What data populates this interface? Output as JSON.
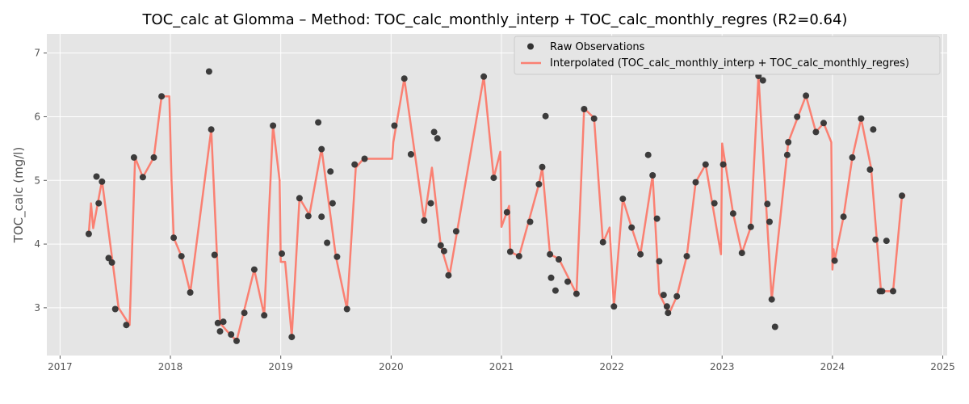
{
  "chart_data": {
    "type": "line",
    "title": "TOC_calc at Glomma – Method: TOC_calc_monthly_interp + TOC_calc_monthly_regres (R2=0.64)",
    "xlabel": "",
    "ylabel": "TOC_calc (mg/l)",
    "x_ticks": [
      "2017",
      "2018",
      "2019",
      "2020",
      "2021",
      "2022",
      "2023",
      "2024",
      "2025"
    ],
    "y_ticks": [
      "3",
      "4",
      "5",
      "6",
      "7"
    ],
    "xlim": [
      2016.88,
      2025.04
    ],
    "ylim": [
      2.25,
      7.3
    ],
    "grid": true,
    "legend_position": "top-right",
    "colors": {
      "plot_background": "#e5e5e5",
      "grid": "#ffffff",
      "raw_points": "#333333",
      "interp_line": "#fa8072"
    },
    "series": [
      {
        "name": "Raw Observations",
        "kind": "scatter",
        "points": [
          [
            2017.26,
            4.16
          ],
          [
            2017.33,
            5.06
          ],
          [
            2017.35,
            4.64
          ],
          [
            2017.38,
            4.98
          ],
          [
            2017.44,
            3.78
          ],
          [
            2017.47,
            3.71
          ],
          [
            2017.5,
            2.98
          ],
          [
            2017.6,
            2.73
          ],
          [
            2017.67,
            5.36
          ],
          [
            2017.75,
            5.05
          ],
          [
            2017.85,
            5.36
          ],
          [
            2017.92,
            6.32
          ],
          [
            2018.03,
            4.1
          ],
          [
            2018.1,
            3.81
          ],
          [
            2018.18,
            3.24
          ],
          [
            2018.35,
            6.71
          ],
          [
            2018.37,
            5.8
          ],
          [
            2018.4,
            3.83
          ],
          [
            2018.43,
            2.76
          ],
          [
            2018.45,
            2.63
          ],
          [
            2018.48,
            2.78
          ],
          [
            2018.55,
            2.58
          ],
          [
            2018.6,
            2.48
          ],
          [
            2018.67,
            2.92
          ],
          [
            2018.76,
            3.6
          ],
          [
            2018.85,
            2.88
          ],
          [
            2018.93,
            5.86
          ],
          [
            2019.01,
            3.85
          ],
          [
            2019.1,
            2.54
          ],
          [
            2019.17,
            4.72
          ],
          [
            2019.25,
            4.44
          ],
          [
            2019.34,
            5.91
          ],
          [
            2019.37,
            4.43
          ],
          [
            2019.37,
            5.49
          ],
          [
            2019.42,
            4.02
          ],
          [
            2019.45,
            5.14
          ],
          [
            2019.47,
            4.64
          ],
          [
            2019.51,
            3.8
          ],
          [
            2019.6,
            2.98
          ],
          [
            2019.67,
            5.25
          ],
          [
            2019.76,
            5.34
          ],
          [
            2020.03,
            5.86
          ],
          [
            2020.12,
            6.6
          ],
          [
            2020.18,
            5.41
          ],
          [
            2020.3,
            4.37
          ],
          [
            2020.36,
            4.64
          ],
          [
            2020.39,
            5.76
          ],
          [
            2020.42,
            5.66
          ],
          [
            2020.45,
            3.98
          ],
          [
            2020.48,
            3.89
          ],
          [
            2020.52,
            3.51
          ],
          [
            2020.59,
            4.2
          ],
          [
            2020.84,
            6.63
          ],
          [
            2020.93,
            5.04
          ],
          [
            2021.05,
            4.5
          ],
          [
            2021.08,
            3.88
          ],
          [
            2021.16,
            3.81
          ],
          [
            2021.26,
            4.35
          ],
          [
            2021.34,
            4.94
          ],
          [
            2021.37,
            5.21
          ],
          [
            2021.4,
            6.01
          ],
          [
            2021.44,
            3.84
          ],
          [
            2021.45,
            3.47
          ],
          [
            2021.49,
            3.27
          ],
          [
            2021.52,
            3.76
          ],
          [
            2021.6,
            3.41
          ],
          [
            2021.68,
            3.22
          ],
          [
            2021.75,
            6.12
          ],
          [
            2021.84,
            5.97
          ],
          [
            2021.92,
            4.03
          ],
          [
            2022.02,
            3.02
          ],
          [
            2022.1,
            4.71
          ],
          [
            2022.18,
            4.26
          ],
          [
            2022.26,
            3.84
          ],
          [
            2022.33,
            5.4
          ],
          [
            2022.37,
            5.08
          ],
          [
            2022.41,
            4.4
          ],
          [
            2022.43,
            3.73
          ],
          [
            2022.47,
            3.2
          ],
          [
            2022.5,
            3.02
          ],
          [
            2022.51,
            2.92
          ],
          [
            2022.59,
            3.18
          ],
          [
            2022.68,
            3.81
          ],
          [
            2022.76,
            4.97
          ],
          [
            2022.85,
            5.25
          ],
          [
            2022.93,
            4.64
          ],
          [
            2023.01,
            5.25
          ],
          [
            2023.1,
            4.48
          ],
          [
            2023.18,
            3.86
          ],
          [
            2023.26,
            4.27
          ],
          [
            2023.33,
            6.64
          ],
          [
            2023.37,
            6.57
          ],
          [
            2023.41,
            4.63
          ],
          [
            2023.43,
            4.35
          ],
          [
            2023.45,
            3.13
          ],
          [
            2023.48,
            2.7
          ],
          [
            2023.59,
            5.4
          ],
          [
            2023.6,
            5.6
          ],
          [
            2023.65,
            7.02
          ],
          [
            2023.68,
            6.0
          ],
          [
            2023.76,
            6.33
          ],
          [
            2023.85,
            5.76
          ],
          [
            2023.92,
            5.9
          ],
          [
            2024.02,
            3.74
          ],
          [
            2024.1,
            4.43
          ],
          [
            2024.18,
            5.36
          ],
          [
            2024.26,
            5.97
          ],
          [
            2024.34,
            5.17
          ],
          [
            2024.37,
            5.8
          ],
          [
            2024.39,
            4.07
          ],
          [
            2024.43,
            3.26
          ],
          [
            2024.45,
            3.26
          ],
          [
            2024.49,
            4.05
          ],
          [
            2024.55,
            3.26
          ],
          [
            2024.63,
            4.76
          ]
        ]
      },
      {
        "name": "Interpolated (TOC_calc_monthly_interp + TOC_calc_monthly_regres)",
        "kind": "line",
        "points": [
          [
            2017.26,
            4.16
          ],
          [
            2017.28,
            4.64
          ],
          [
            2017.3,
            4.25
          ],
          [
            2017.38,
            5.0
          ],
          [
            2017.47,
            3.8
          ],
          [
            2017.53,
            3.0
          ],
          [
            2017.63,
            2.73
          ],
          [
            2017.68,
            5.36
          ],
          [
            2017.75,
            5.05
          ],
          [
            2017.85,
            5.36
          ],
          [
            2017.92,
            6.32
          ],
          [
            2017.99,
            6.32
          ],
          [
            2018.01,
            5.0
          ],
          [
            2018.03,
            4.1
          ],
          [
            2018.1,
            3.81
          ],
          [
            2018.18,
            3.24
          ],
          [
            2018.37,
            5.8
          ],
          [
            2018.45,
            2.76
          ],
          [
            2018.52,
            2.62
          ],
          [
            2018.6,
            2.48
          ],
          [
            2018.76,
            3.6
          ],
          [
            2018.85,
            2.88
          ],
          [
            2018.93,
            5.86
          ],
          [
            2018.99,
            5.0
          ],
          [
            2019.0,
            3.72
          ],
          [
            2019.04,
            3.72
          ],
          [
            2019.1,
            2.55
          ],
          [
            2019.17,
            4.72
          ],
          [
            2019.26,
            4.46
          ],
          [
            2019.37,
            5.5
          ],
          [
            2019.5,
            3.8
          ],
          [
            2019.6,
            2.98
          ],
          [
            2019.68,
            5.2
          ],
          [
            2019.75,
            5.34
          ],
          [
            2020.01,
            5.34
          ],
          [
            2020.02,
            5.6
          ],
          [
            2020.12,
            6.6
          ],
          [
            2020.3,
            4.37
          ],
          [
            2020.37,
            5.2
          ],
          [
            2020.45,
            3.98
          ],
          [
            2020.53,
            3.51
          ],
          [
            2020.84,
            6.63
          ],
          [
            2020.93,
            5.04
          ],
          [
            2020.99,
            5.45
          ],
          [
            2021.0,
            4.27
          ],
          [
            2021.07,
            4.6
          ],
          [
            2021.08,
            3.88
          ],
          [
            2021.16,
            3.81
          ],
          [
            2021.34,
            4.94
          ],
          [
            2021.37,
            5.2
          ],
          [
            2021.44,
            3.84
          ],
          [
            2021.52,
            3.77
          ],
          [
            2021.68,
            3.22
          ],
          [
            2021.75,
            6.13
          ],
          [
            2021.84,
            5.98
          ],
          [
            2021.92,
            4.02
          ],
          [
            2021.98,
            4.26
          ],
          [
            2022.02,
            3.02
          ],
          [
            2022.1,
            4.71
          ],
          [
            2022.18,
            4.26
          ],
          [
            2022.26,
            3.84
          ],
          [
            2022.37,
            5.08
          ],
          [
            2022.43,
            3.22
          ],
          [
            2022.52,
            2.91
          ],
          [
            2022.59,
            3.18
          ],
          [
            2022.68,
            3.81
          ],
          [
            2022.76,
            4.97
          ],
          [
            2022.85,
            5.25
          ],
          [
            2022.99,
            3.84
          ],
          [
            2023.0,
            5.58
          ],
          [
            2023.1,
            4.48
          ],
          [
            2023.18,
            3.86
          ],
          [
            2023.26,
            4.27
          ],
          [
            2023.33,
            6.64
          ],
          [
            2023.45,
            3.13
          ],
          [
            2023.6,
            5.6
          ],
          [
            2023.76,
            6.33
          ],
          [
            2023.85,
            5.76
          ],
          [
            2023.92,
            5.9
          ],
          [
            2023.99,
            5.6
          ],
          [
            2024.0,
            3.6
          ],
          [
            2024.01,
            3.92
          ],
          [
            2024.02,
            3.74
          ],
          [
            2024.1,
            4.43
          ],
          [
            2024.18,
            5.36
          ],
          [
            2024.26,
            5.97
          ],
          [
            2024.35,
            5.2
          ],
          [
            2024.44,
            3.26
          ],
          [
            2024.55,
            3.26
          ],
          [
            2024.63,
            4.76
          ],
          [
            2024.66,
            4.77
          ]
        ]
      }
    ]
  }
}
